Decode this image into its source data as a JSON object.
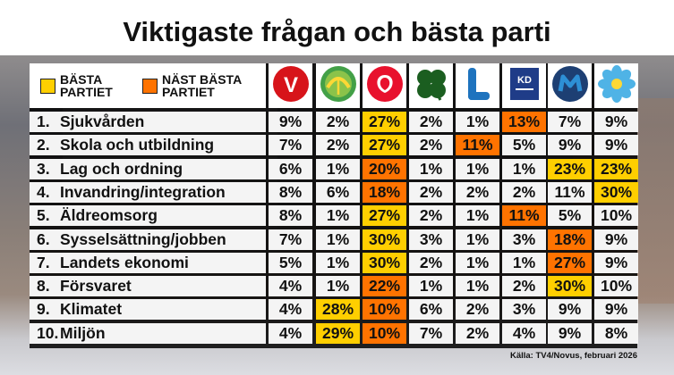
{
  "title": "Viktigaste frågan och bästa parti",
  "legend": {
    "best": {
      "label": "BÄSTA\nPARTIET",
      "color": "#ffcf00"
    },
    "second": {
      "label": "NÄST BÄSTA\nPARTIET",
      "color": "#ff7300"
    }
  },
  "parties": [
    {
      "logo": "V",
      "icon": "vansterpartiet-logo-icon",
      "color": "#d7141a"
    },
    {
      "logo": "",
      "icon": "miljopartiet-logo-icon",
      "color": "#43a047"
    },
    {
      "logo": "",
      "icon": "socialdemokraterna-logo-icon",
      "color": "#e8112d"
    },
    {
      "logo": "",
      "icon": "centerpartiet-logo-icon",
      "color": "#1b5e20"
    },
    {
      "logo": "L",
      "icon": "liberalerna-logo-icon",
      "color": "#1e73be"
    },
    {
      "logo": "KD",
      "icon": "kristdemokraterna-logo-icon",
      "color": "#1f3c88"
    },
    {
      "logo": "M",
      "icon": "moderaterna-logo-icon",
      "color": "#2d8fd5"
    },
    {
      "logo": "",
      "icon": "sverigedemokraterna-logo-icon",
      "color": "#4fb3e6"
    }
  ],
  "rows": [
    {
      "num": "1.",
      "label": "Sjukvården",
      "values": [
        "9%",
        "2%",
        "27%",
        "2%",
        "1%",
        "13%",
        "7%",
        "9%"
      ],
      "marks": [
        "",
        "",
        "best",
        "",
        "",
        "second",
        "",
        ""
      ]
    },
    {
      "num": "2.",
      "label": "Skola och utbildning",
      "values": [
        "7%",
        "2%",
        "27%",
        "2%",
        "11%",
        "5%",
        "9%",
        "9%"
      ],
      "marks": [
        "",
        "",
        "best",
        "",
        "second",
        "",
        "",
        ""
      ]
    },
    {
      "num": "3.",
      "label": "Lag och ordning",
      "values": [
        "6%",
        "1%",
        "20%",
        "1%",
        "1%",
        "1%",
        "23%",
        "23%"
      ],
      "marks": [
        "",
        "",
        "second",
        "",
        "",
        "",
        "best",
        "best"
      ]
    },
    {
      "num": "4.",
      "label": "Invandring/integration",
      "values": [
        "8%",
        "6%",
        "18%",
        "2%",
        "2%",
        "2%",
        "11%",
        "30%"
      ],
      "marks": [
        "",
        "",
        "second",
        "",
        "",
        "",
        "",
        "best"
      ]
    },
    {
      "num": "5.",
      "label": "Äldreomsorg",
      "values": [
        "8%",
        "1%",
        "27%",
        "2%",
        "1%",
        "11%",
        "5%",
        "10%"
      ],
      "marks": [
        "",
        "",
        "best",
        "",
        "",
        "second",
        "",
        ""
      ]
    },
    {
      "num": "6.",
      "label": "Sysselsättning/jobben",
      "values": [
        "7%",
        "1%",
        "30%",
        "3%",
        "1%",
        "3%",
        "18%",
        "9%"
      ],
      "marks": [
        "",
        "",
        "best",
        "",
        "",
        "",
        "second",
        ""
      ]
    },
    {
      "num": "7.",
      "label": "Landets ekonomi",
      "values": [
        "5%",
        "1%",
        "30%",
        "2%",
        "1%",
        "1%",
        "27%",
        "9%"
      ],
      "marks": [
        "",
        "",
        "best",
        "",
        "",
        "",
        "second",
        ""
      ]
    },
    {
      "num": "8.",
      "label": "Försvaret",
      "values": [
        "4%",
        "1%",
        "22%",
        "1%",
        "1%",
        "2%",
        "30%",
        "10%"
      ],
      "marks": [
        "",
        "",
        "second",
        "",
        "",
        "",
        "best",
        ""
      ]
    },
    {
      "num": "9.",
      "label": "Klimatet",
      "values": [
        "4%",
        "28%",
        "10%",
        "6%",
        "2%",
        "3%",
        "9%",
        "9%"
      ],
      "marks": [
        "",
        "best",
        "second",
        "",
        "",
        "",
        "",
        ""
      ]
    },
    {
      "num": "10.",
      "label": "Miljön",
      "values": [
        "4%",
        "29%",
        "10%",
        "7%",
        "2%",
        "4%",
        "9%",
        "8%"
      ],
      "marks": [
        "",
        "best",
        "second",
        "",
        "",
        "",
        "",
        ""
      ]
    }
  ],
  "source": "Källa: TV4/Novus, februari 2026"
}
